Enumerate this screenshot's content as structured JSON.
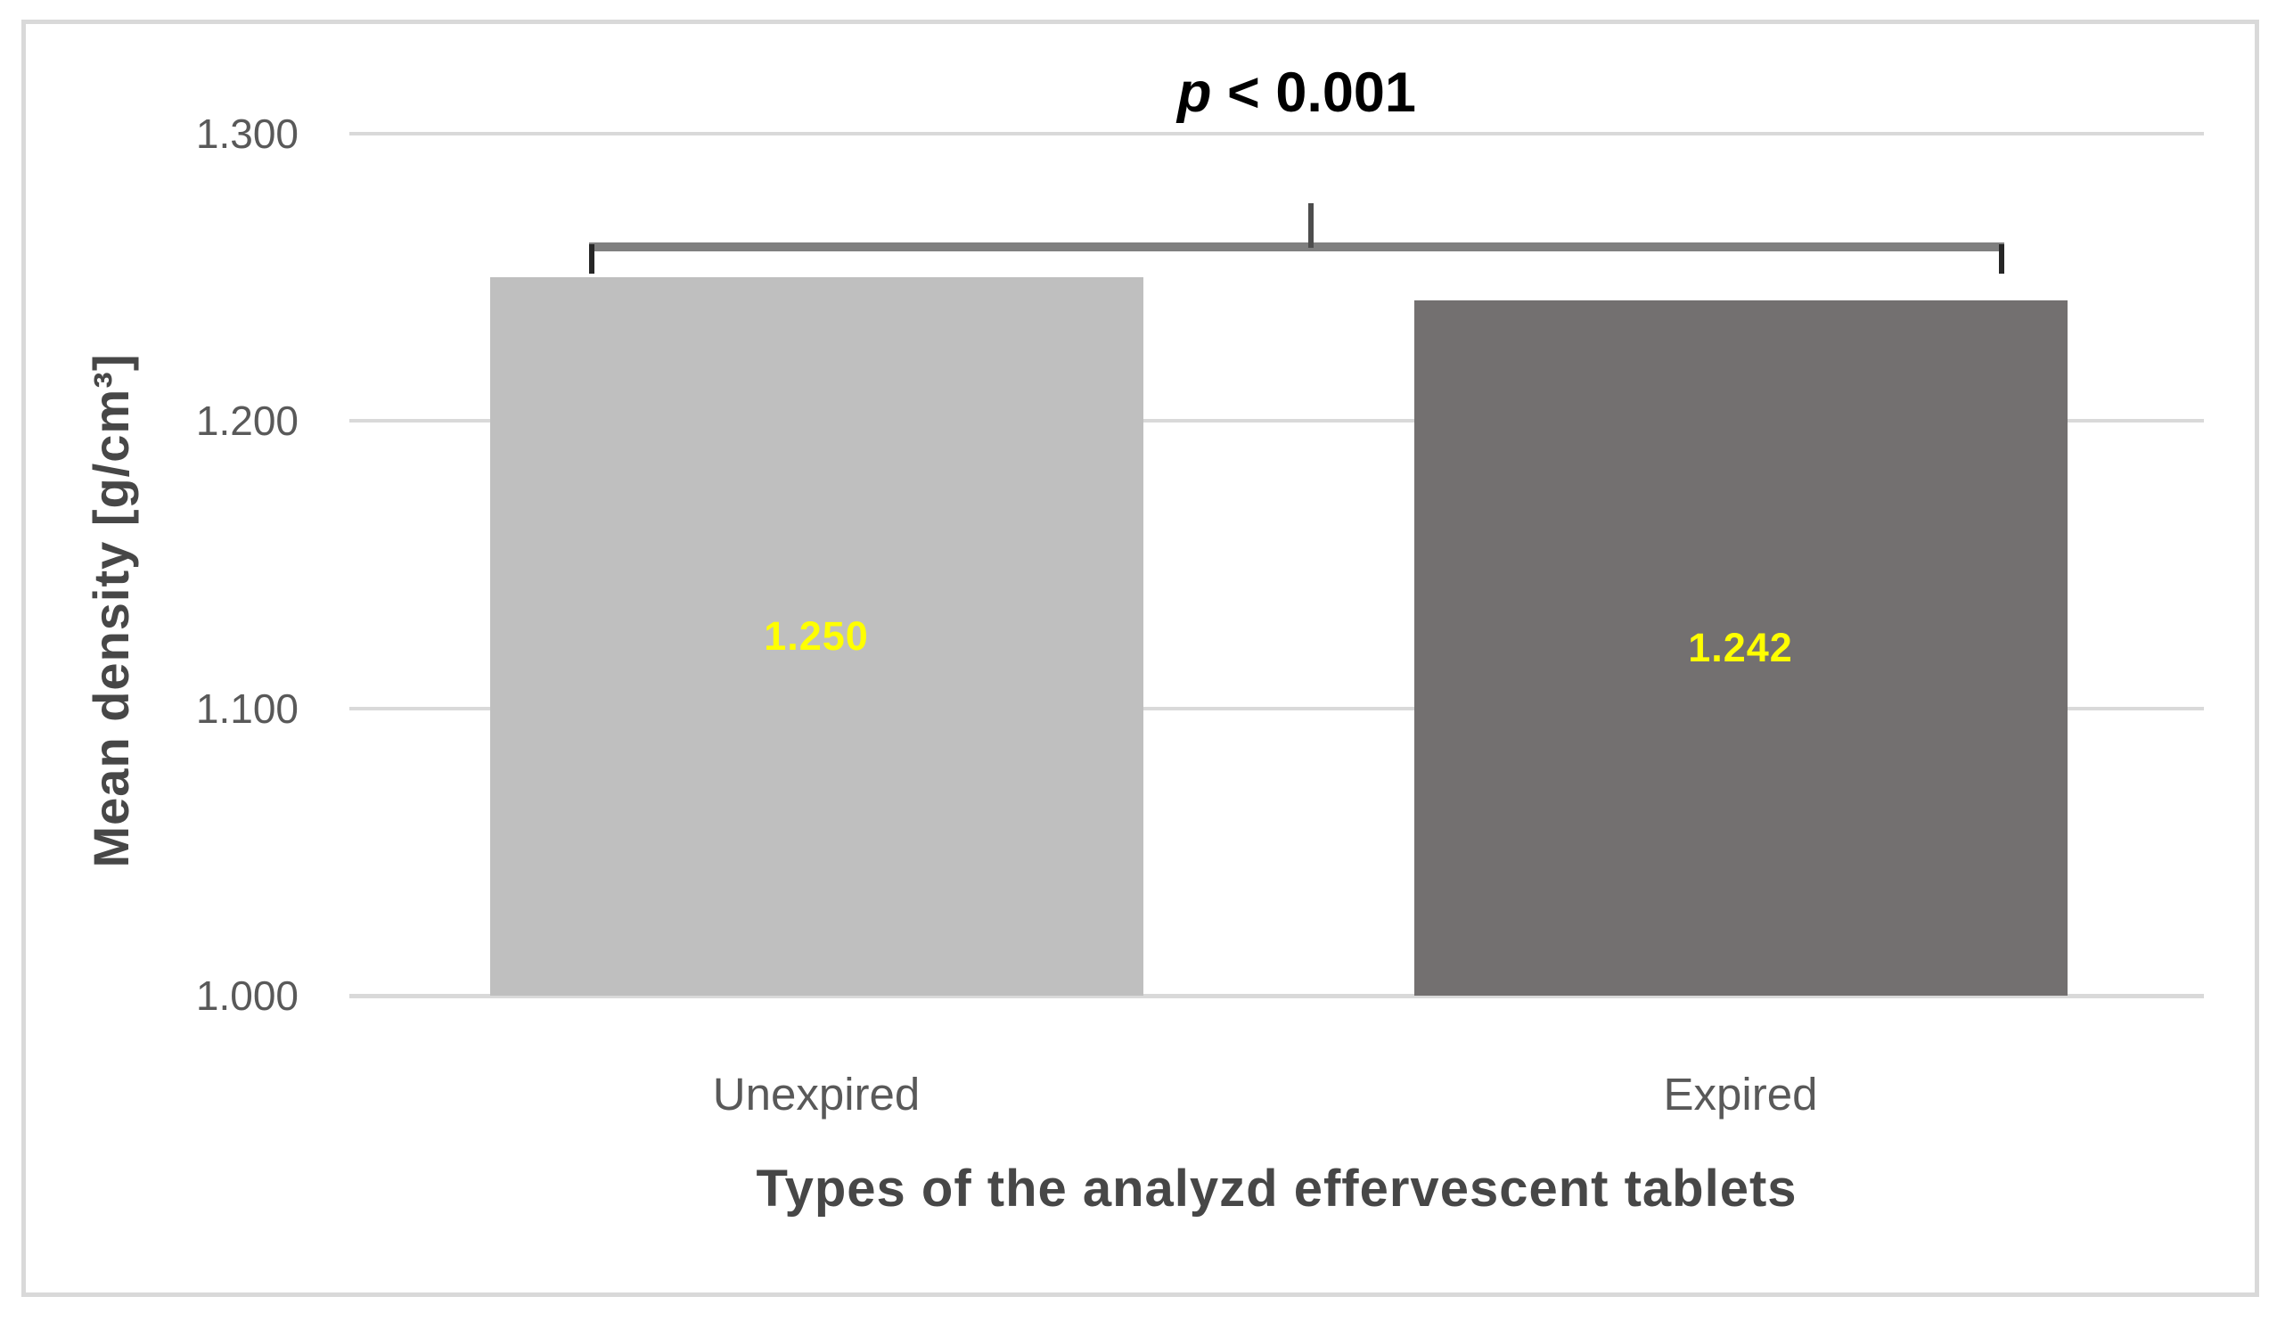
{
  "figure": {
    "background": "#ffffff",
    "border_color": "#d9d9d9"
  },
  "chart_data": {
    "type": "bar",
    "title": "",
    "categories": [
      "Unexpired",
      "Expired"
    ],
    "values": [
      1.25,
      1.242
    ],
    "value_labels": [
      "1.250",
      "1.242"
    ],
    "bar_colors": [
      "#bfbfbf",
      "#737070"
    ],
    "value_label_color": "#ffff00",
    "xlabel": "Types of the analyzd effervescent tablets",
    "ylabel": "Mean density [g/cm³]",
    "ylim": [
      1.0,
      1.3
    ],
    "yticks": [
      {
        "value": 1.3,
        "label": "1.300"
      },
      {
        "value": 1.2,
        "label": "1.200"
      },
      {
        "value": 1.1,
        "label": "1.100"
      },
      {
        "value": 1.0,
        "label": "1.000"
      }
    ],
    "grid": true,
    "legend": false,
    "gridline_color": "#d9d9d9",
    "tick_label_color": "#595959",
    "annotation": {
      "symbol": "p",
      "rest": " < 0.001"
    }
  }
}
